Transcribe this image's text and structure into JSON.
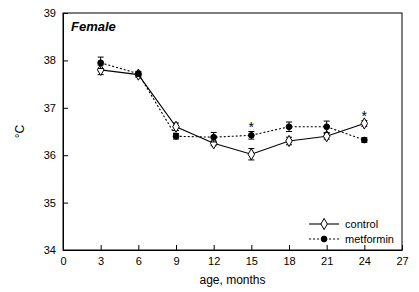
{
  "chart_data": {
    "type": "line",
    "title": "Female",
    "x_label": "age, months",
    "y_label": "°C",
    "x": [
      3,
      6,
      9,
      12,
      15,
      18,
      21,
      24
    ],
    "series": [
      {
        "name": "control",
        "color": "#000000",
        "marker": "diamond",
        "line_style": "solid",
        "values": [
          37.8,
          37.7,
          36.6,
          36.25,
          36.02,
          36.3,
          36.4,
          36.67
        ],
        "errors": [
          0.1,
          0.05,
          0.08,
          0.05,
          0.12,
          0.08,
          0.06,
          0.06
        ]
      },
      {
        "name": "metformin",
        "color": "#000000",
        "marker": "circle",
        "line_style": "dotted",
        "values": [
          37.95,
          37.72,
          36.4,
          36.38,
          36.42,
          36.6,
          36.6,
          36.32
        ],
        "errors": [
          0.12,
          0.05,
          0.06,
          0.1,
          0.08,
          0.1,
          0.12,
          0.05
        ]
      }
    ],
    "annotations": [
      {
        "text": "*",
        "x": 15
      },
      {
        "text": "*",
        "x": 24
      }
    ],
    "xlim": [
      0,
      27
    ],
    "xticks": [
      0,
      3,
      6,
      9,
      12,
      15,
      18,
      21,
      24,
      27
    ],
    "ylim": [
      34,
      39
    ],
    "yticks": [
      34,
      35,
      36,
      37,
      38,
      39
    ],
    "legend": "lower right",
    "grid": false
  }
}
